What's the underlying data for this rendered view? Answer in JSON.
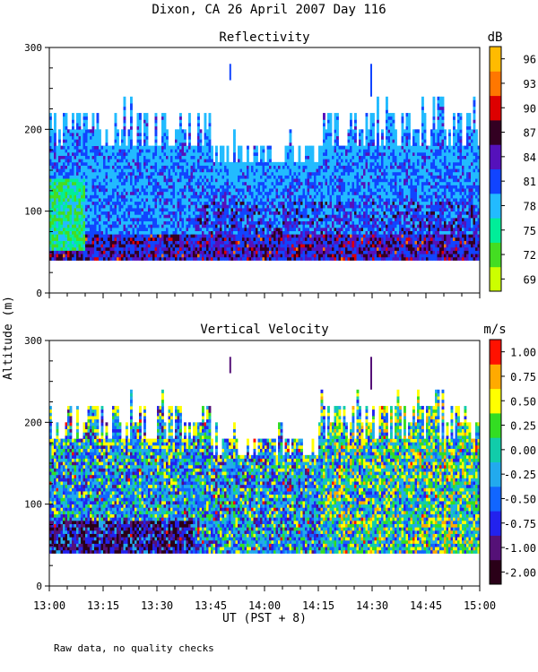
{
  "figure": {
    "title": "Dixon, CA 26 April 2007  Day 116",
    "ylabel": "Altitude (m)",
    "xlabel": "UT  (PST + 8)",
    "footnote": "Raw data, no quality checks"
  },
  "chart_data": [
    {
      "type": "heatmap",
      "title": "Reflectivity",
      "units": "dB",
      "x_range": [
        "13:00",
        "15:00"
      ],
      "x_ticks": [
        "13:00",
        "13:15",
        "13:30",
        "13:45",
        "14:00",
        "14:15",
        "14:30",
        "14:45",
        "15:00"
      ],
      "ylim": [
        0,
        300
      ],
      "y_ticks": [
        "0",
        "100",
        "200",
        "300"
      ],
      "colorbar": {
        "levels": [
          "69",
          "72",
          "75",
          "78",
          "81",
          "84",
          "87",
          "90",
          "93",
          "96"
        ],
        "colors": [
          "#ccff00",
          "#44dd22",
          "#00ee99",
          "#22bbff",
          "#1144ff",
          "#5511bb",
          "#330022",
          "#dd0000",
          "#ff7700",
          "#ffbb00"
        ]
      },
      "data_extent": {
        "altitude_min": 40,
        "altitude_max_typical": [
          180,
          200,
          220
        ]
      },
      "description_regions": [
        {
          "time": "13:00-13:10",
          "altitude": [
            50,
            140
          ],
          "level_index": [
            1,
            3
          ]
        },
        {
          "time": "13:10-15:00",
          "altitude": [
            40,
            200
          ],
          "level_index": [
            3,
            4
          ]
        },
        {
          "time": "13:10-15:00",
          "altitude": [
            40,
            70
          ],
          "level_index": [
            5,
            7
          ]
        }
      ]
    },
    {
      "type": "heatmap",
      "title": "Vertical Velocity",
      "units": "m/s",
      "x_range": [
        "13:00",
        "15:00"
      ],
      "x_ticks": [
        "13:00",
        "13:15",
        "13:30",
        "13:45",
        "14:00",
        "14:15",
        "14:30",
        "14:45",
        "15:00"
      ],
      "ylim": [
        0,
        300
      ],
      "y_ticks": [
        "0",
        "100",
        "200",
        "300"
      ],
      "colorbar": {
        "levels": [
          "-2.00",
          "-1.00",
          "-0.75",
          "-0.50",
          "-0.25",
          "0.00",
          "0.25",
          "0.50",
          "0.75",
          "1.00"
        ],
        "colors": [
          "#2a0018",
          "#551177",
          "#2222ee",
          "#1166ff",
          "#22aaee",
          "#11ccaa",
          "#33dd22",
          "#ffff00",
          "#ffaa00",
          "#ff1100"
        ]
      },
      "data_extent": {
        "altitude_min": 40,
        "altitude_max_typical": [
          180,
          200,
          220
        ]
      }
    }
  ]
}
